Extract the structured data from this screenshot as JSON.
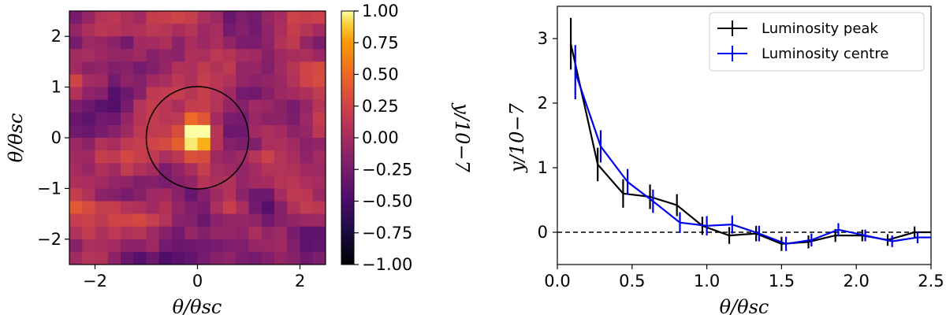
{
  "chart_data": [
    {
      "type": "heatmap",
      "xlabel": "θ/θsc",
      "ylabel": "θ/θsc",
      "xlim": [
        -2.5,
        2.5
      ],
      "ylim": [
        -2.5,
        2.5
      ],
      "xticks": [
        "−2",
        "0",
        "2"
      ],
      "yticks": [
        "−2",
        "−1",
        "0",
        "1",
        "2"
      ],
      "grid_cells": [
        20,
        20
      ],
      "colormap": "inferno",
      "circle_radius": 1.0,
      "circle_center": [
        0,
        0
      ],
      "colorbar": {
        "label": "y/10−7",
        "range": [
          -1.0,
          1.0
        ],
        "ticks": [
          "1.00",
          "0.75",
          "0.50",
          "0.25",
          "0.00",
          "−0.25",
          "−0.50",
          "−0.75",
          "−1.00"
        ]
      },
      "values_note": "Pixel values estimated from map; strong positive peak at the centre within radius 1.",
      "peak_value": 1.0
    },
    {
      "type": "line",
      "xlabel": "θ/θsc",
      "ylabel": "y/10−7",
      "xlim": [
        0.0,
        2.5
      ],
      "ylim": [
        -0.5,
        3.5
      ],
      "xticks": [
        "0.0",
        "0.5",
        "1.0",
        "1.5",
        "2.0",
        "2.5"
      ],
      "yticks": [
        "0",
        "1",
        "2",
        "3"
      ],
      "reference_line_y": 0,
      "legend_position": "top-right",
      "series": [
        {
          "name": "Luminosity peak",
          "color": "#000000",
          "x": [
            0.09,
            0.27,
            0.44,
            0.62,
            0.8,
            0.97,
            1.15,
            1.33,
            1.5,
            1.68,
            1.86,
            2.04,
            2.21,
            2.39,
            2.5
          ],
          "y": [
            2.92,
            1.05,
            0.6,
            0.55,
            0.42,
            0.1,
            -0.05,
            -0.02,
            -0.18,
            -0.15,
            -0.05,
            -0.05,
            -0.12,
            0.0,
            0.0
          ],
          "yerr": [
            0.4,
            0.26,
            0.22,
            0.19,
            0.17,
            0.14,
            0.13,
            0.12,
            0.11,
            0.1,
            0.1,
            0.09,
            0.09,
            0.09,
            0.0
          ]
        },
        {
          "name": "Luminosity centre",
          "color": "#0000ee",
          "x": [
            0.12,
            0.29,
            0.47,
            0.64,
            0.82,
            1.0,
            1.17,
            1.35,
            1.53,
            1.7,
            1.88,
            2.06,
            2.24,
            2.41,
            2.5
          ],
          "y": [
            2.48,
            1.33,
            0.78,
            0.48,
            0.15,
            0.1,
            0.12,
            -0.02,
            -0.18,
            -0.12,
            0.04,
            -0.05,
            -0.14,
            -0.08,
            -0.08
          ],
          "yerr": [
            0.42,
            0.25,
            0.2,
            0.18,
            0.16,
            0.15,
            0.14,
            0.12,
            0.11,
            0.1,
            0.1,
            0.09,
            0.09,
            0.09,
            0.0
          ]
        }
      ]
    }
  ]
}
